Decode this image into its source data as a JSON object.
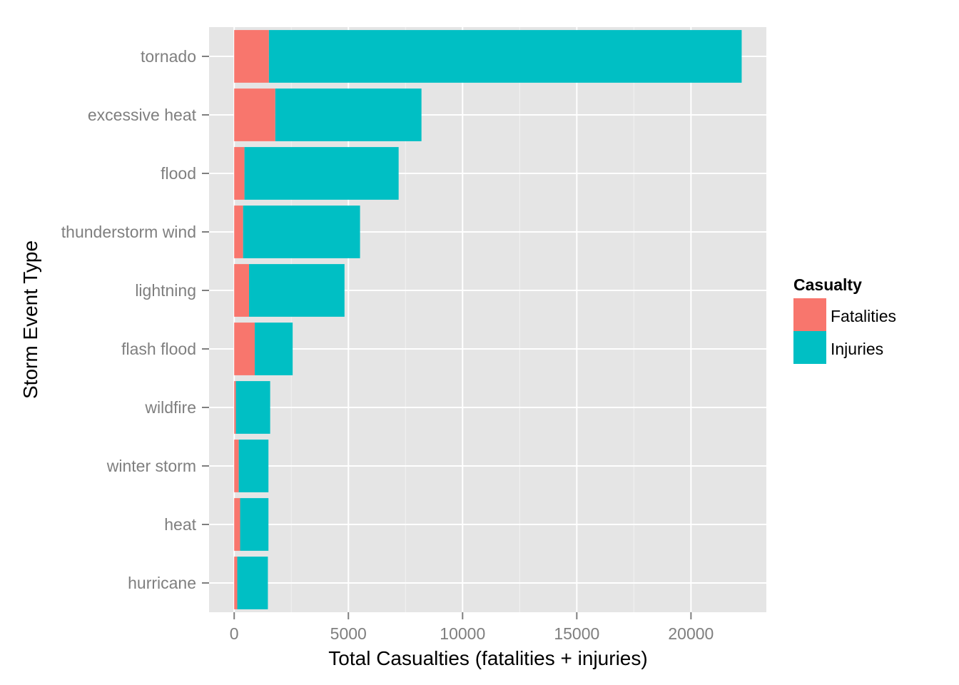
{
  "chart_data": {
    "type": "bar",
    "orientation": "horizontal",
    "stacked": true,
    "categories": [
      "tornado",
      "excessive heat",
      "flood",
      "thunderstorm wind",
      "lightning",
      "flash flood",
      "wildfire",
      "winter storm",
      "heat",
      "hurricane"
    ],
    "series": [
      {
        "name": "Fatalities",
        "color": "#F8766D",
        "values": [
          1520,
          1800,
          450,
          390,
          650,
          900,
          75,
          200,
          260,
          135
        ]
      },
      {
        "name": "Injuries",
        "color": "#00BFC4",
        "values": [
          20700,
          6400,
          6750,
          5120,
          4180,
          1660,
          1500,
          1300,
          1240,
          1340
        ]
      }
    ],
    "xlabel": "Total Casualties (fatalities + injuries)",
    "ylabel": "Storm Event Type",
    "xlim": [
      -1100,
      23300
    ],
    "xticks": [
      0,
      5000,
      10000,
      15000,
      20000
    ],
    "xtick_labels": [
      "0",
      "5000",
      "10000",
      "15000",
      "20000"
    ],
    "grid": true,
    "panel_background": "#E5E5E5",
    "legend": {
      "title": "Casualty",
      "position": "right"
    }
  }
}
